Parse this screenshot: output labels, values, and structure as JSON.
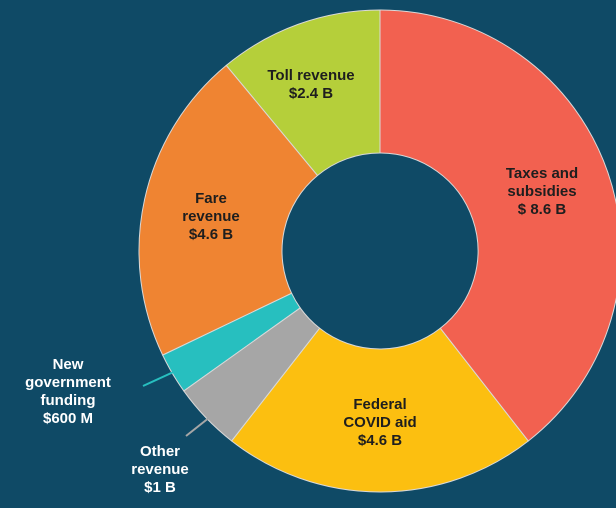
{
  "chart_data": {
    "type": "donut",
    "categories": [
      "Taxes and\nsubsidies",
      "Federal\nCOVID aid",
      "Other\nrevenue",
      "New\ngovernment\nfunding",
      "Fare\nrevenue",
      "Toll revenue"
    ],
    "values": [
      8.6,
      4.6,
      1,
      0.6,
      4.6,
      2.4
    ],
    "value_labels": [
      "$ 8.6 B",
      "$4.6 B",
      "$1 B",
      "$600 M",
      "$4.6 B",
      "$2.4 B"
    ],
    "colors": [
      "#f26150",
      "#fcbf10",
      "#a6a6a6",
      "#27bfbf",
      "#ef8432",
      "#b5cf3a"
    ]
  }
}
